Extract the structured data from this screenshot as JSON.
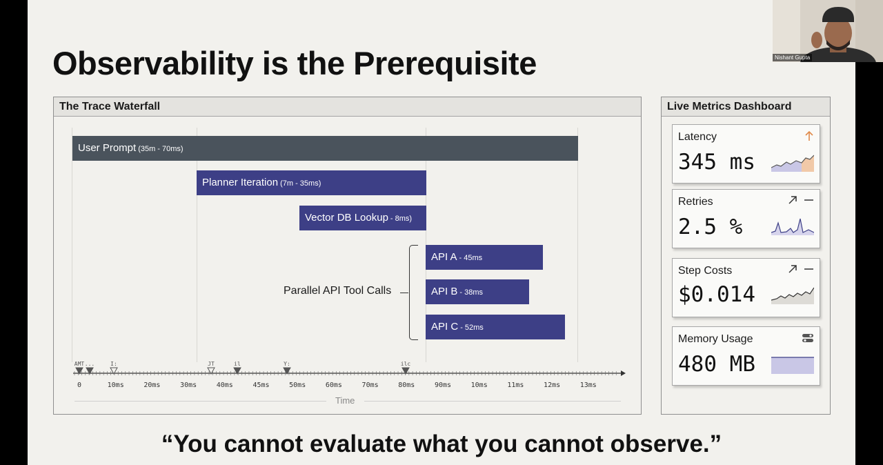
{
  "slide": {
    "title": "Observability is the Prerequisite",
    "quote": "“You cannot evaluate what you cannot observe.”"
  },
  "trace": {
    "panel_title": "The Trace Waterfall",
    "spans": [
      {
        "label": "User Prompt",
        "duration": "(35m - 70ms)",
        "color": "#4a535c"
      },
      {
        "label": "Planner Iteration",
        "duration": "(7m - 35ms)",
        "color": "#3d3f86"
      },
      {
        "label": "Vector DB Lookup",
        "duration": "- 8ms)",
        "color": "#3d3f86"
      },
      {
        "label": "API A",
        "duration": "- 45ms",
        "color": "#3d3f86"
      },
      {
        "label": "API B",
        "duration": "- 38ms",
        "color": "#3d3f86"
      },
      {
        "label": "API C",
        "duration": "- 52ms",
        "color": "#3d3f86"
      }
    ],
    "parallel_label": "Parallel API Tool Calls",
    "ticks": [
      "0",
      "10ms",
      "20ms",
      "30ms",
      "40ms",
      "45ms",
      "50ms",
      "60ms",
      "70ms",
      "80ms",
      "90ms",
      "10ms",
      "11ms",
      "12ms",
      "13ms"
    ],
    "markers": [
      "AMT",
      "...",
      "I:",
      "JT",
      "il",
      "Y:",
      "ilc"
    ],
    "axis_title": "Time"
  },
  "metrics": {
    "panel_title": "Live Metrics Dashboard",
    "cards": [
      {
        "title": "Latency",
        "value": "345 ms",
        "icon": "arrow-up-icon",
        "accent": "#e08a4a"
      },
      {
        "title": "Retries",
        "value": "2.5 %",
        "icon": "arrow-up-right-icon"
      },
      {
        "title": "Step Costs",
        "value": "$0.014",
        "icon": "arrow-up-right-icon"
      },
      {
        "title": "Memory Usage",
        "value": "480 MB",
        "icon": "toggle-icon",
        "accent": "#c9c7e6"
      }
    ]
  },
  "webcam": {
    "name": "Nishant Gupta"
  }
}
